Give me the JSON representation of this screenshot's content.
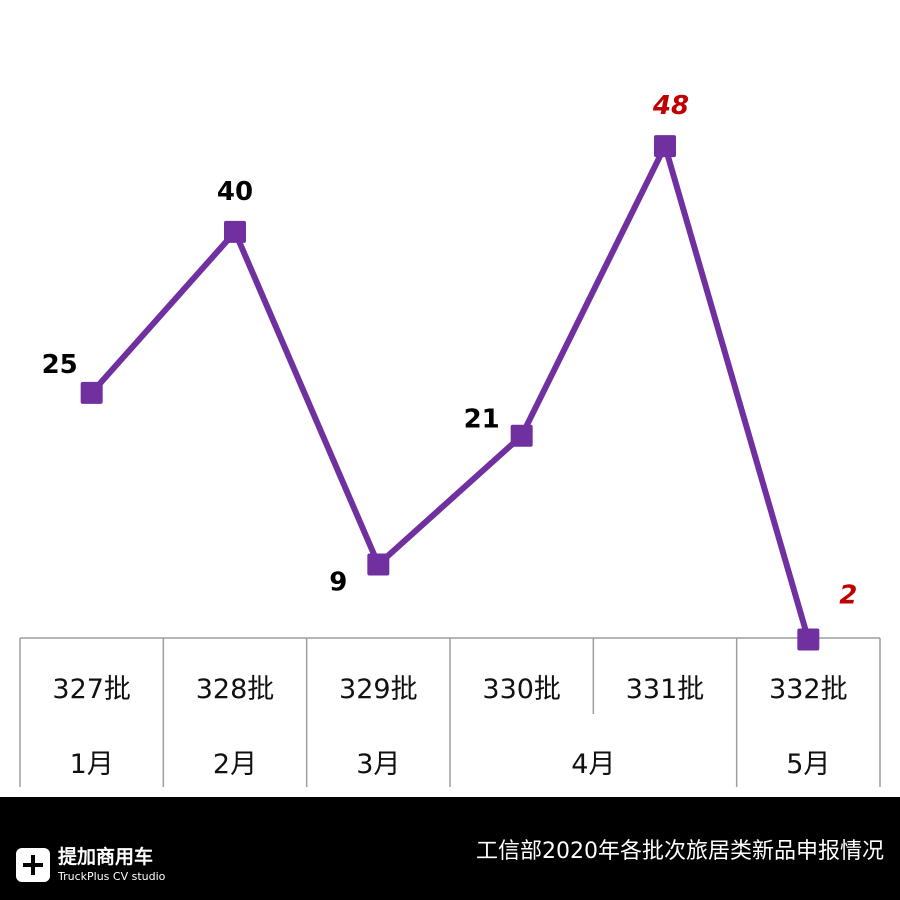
{
  "chart_data": {
    "type": "line",
    "categories": [
      "327批",
      "328批",
      "329批",
      "330批",
      "331批",
      "332批"
    ],
    "values": [
      25,
      40,
      9,
      21,
      48,
      2
    ],
    "value_labels": [
      "25",
      "40",
      "9",
      "21",
      "48",
      "2"
    ],
    "highlight_indices": [
      4,
      5
    ],
    "months": [
      {
        "label": "1月",
        "span": [
          0,
          0
        ]
      },
      {
        "label": "2月",
        "span": [
          1,
          1
        ]
      },
      {
        "label": "3月",
        "span": [
          2,
          2
        ]
      },
      {
        "label": "4月",
        "span": [
          3,
          4
        ]
      },
      {
        "label": "5月",
        "span": [
          5,
          5
        ]
      }
    ],
    "ylim": [
      0,
      55
    ],
    "grid": false,
    "colors": {
      "line": "#7030a0",
      "label": "#000000",
      "highlight_label": "#c00000",
      "table_border": "#9e9e9e"
    }
  },
  "footer": {
    "title": "工信部2020年各批次旅居类新品申报情况",
    "logo_cn": "提加商用车",
    "logo_en": "TruckPlus CV studio",
    "logo_icon": "truckplus-logo-icon"
  }
}
